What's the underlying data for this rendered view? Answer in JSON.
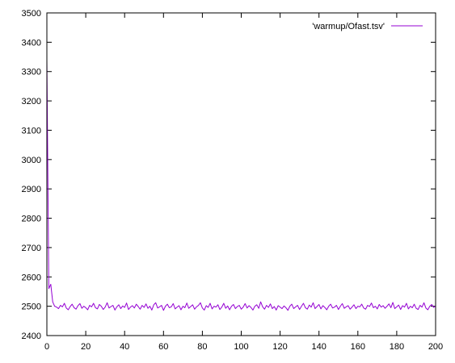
{
  "chart_data": {
    "type": "line",
    "title": "",
    "xlabel": "",
    "ylabel": "",
    "xlim": [
      0,
      200
    ],
    "ylim": [
      2400,
      3500
    ],
    "xticks": [
      0,
      20,
      40,
      60,
      80,
      100,
      120,
      140,
      160,
      180,
      200
    ],
    "yticks": [
      2400,
      2500,
      2600,
      2700,
      2800,
      2900,
      3000,
      3100,
      3200,
      3300,
      3400,
      3500
    ],
    "grid": false,
    "legend": {
      "position": "top-right",
      "entries": [
        "'warmup/Ofast.tsv'"
      ]
    },
    "colors": {
      "series": "#9400d3",
      "axis": "#000000"
    },
    "series": [
      {
        "name": "'warmup/Ofast.tsv'",
        "x": [
          0,
          1,
          2,
          3,
          4,
          5,
          6,
          7,
          8,
          9,
          10,
          11,
          12,
          13,
          14,
          15,
          16,
          17,
          18,
          19,
          20,
          21,
          22,
          23,
          24,
          25,
          26,
          27,
          28,
          29,
          30,
          31,
          32,
          33,
          34,
          35,
          36,
          37,
          38,
          39,
          40,
          41,
          42,
          43,
          44,
          45,
          46,
          47,
          48,
          49,
          50,
          51,
          52,
          53,
          54,
          55,
          56,
          57,
          58,
          59,
          60,
          61,
          62,
          63,
          64,
          65,
          66,
          67,
          68,
          69,
          70,
          71,
          72,
          73,
          74,
          75,
          76,
          77,
          78,
          79,
          80,
          81,
          82,
          83,
          84,
          85,
          86,
          87,
          88,
          89,
          90,
          91,
          92,
          93,
          94,
          95,
          96,
          97,
          98,
          99,
          100,
          101,
          102,
          103,
          104,
          105,
          106,
          107,
          108,
          109,
          110,
          111,
          112,
          113,
          114,
          115,
          116,
          117,
          118,
          119,
          120,
          121,
          122,
          123,
          124,
          125,
          126,
          127,
          128,
          129,
          130,
          131,
          132,
          133,
          134,
          135,
          136,
          137,
          138,
          139,
          140,
          141,
          142,
          143,
          144,
          145,
          146,
          147,
          148,
          149,
          150,
          151,
          152,
          153,
          154,
          155,
          156,
          157,
          158,
          159,
          160,
          161,
          162,
          163,
          164,
          165,
          166,
          167,
          168,
          169,
          170,
          171,
          172,
          173,
          174,
          175,
          176,
          177,
          178,
          179,
          180,
          181,
          182,
          183,
          184,
          185,
          186,
          187,
          188,
          189,
          190,
          191,
          192,
          193,
          194,
          195,
          196,
          197,
          198,
          199,
          200
        ],
        "y": [
          3340,
          2560,
          2575,
          2515,
          2500,
          2497,
          2492,
          2503,
          2498,
          2510,
          2494,
          2488,
          2499,
          2507,
          2495,
          2490,
          2502,
          2509,
          2493,
          2500,
          2495,
          2488,
          2503,
          2498,
          2510,
          2495,
          2491,
          2506,
          2500,
          2489,
          2497,
          2512,
          2494,
          2499,
          2503,
          2487,
          2498,
          2505,
          2492,
          2501,
          2496,
          2511,
          2489,
          2497,
          2502,
          2494,
          2507,
          2499,
          2490,
          2503,
          2496,
          2508,
          2493,
          2500,
          2487,
          2505,
          2512,
          2494,
          2498,
          2503,
          2486,
          2500,
          2507,
          2495,
          2498,
          2509,
          2491,
          2497,
          2502,
          2488,
          2500,
          2495,
          2511,
          2493,
          2499,
          2505,
          2490,
          2498,
          2503,
          2512,
          2494,
          2487,
          2502,
          2496,
          2510,
          2491,
          2500,
          2497,
          2505,
          2489,
          2497,
          2510,
          2493,
          2501,
          2488,
          2500,
          2506,
          2492,
          2499,
          2503,
          2490,
          2497,
          2509,
          2494,
          2502,
          2496,
          2487,
          2500,
          2505,
          2493,
          2515,
          2498,
          2490,
          2503,
          2496,
          2508,
          2492,
          2499,
          2487,
          2502,
          2497,
          2492,
          2501,
          2495,
          2486,
          2500,
          2507,
          2492,
          2498,
          2503,
          2489,
          2500,
          2510,
          2495,
          2490,
          2504,
          2497,
          2512,
          2492,
          2499,
          2506,
          2491,
          2502,
          2496,
          2488,
          2500,
          2507,
          2494,
          2497,
          2503,
          2489,
          2500,
          2509,
          2493,
          2498,
          2502,
          2490,
          2497,
          2505,
          2492,
          2500,
          2498,
          2507,
          2494,
          2490,
          2503,
          2499,
          2511,
          2495,
          2500,
          2491,
          2506,
          2497,
          2502,
          2493,
          2500,
          2508,
          2495,
          2513,
          2492,
          2498,
          2504,
          2489,
          2502,
          2497,
          2510,
          2491,
          2500,
          2495,
          2507,
          2493,
          2489,
          2503,
          2497,
          2512,
          2494,
          2488,
          2500,
          2506,
          2496,
          2501
        ]
      }
    ]
  }
}
